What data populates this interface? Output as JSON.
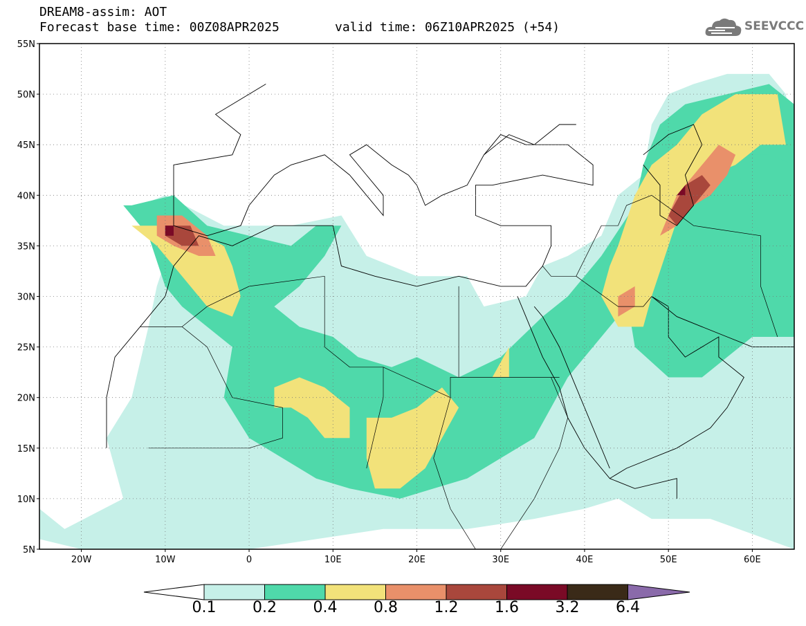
{
  "header": {
    "title": "DREAM8-assim: AOT",
    "base_time": "Forecast base time: 00Z08APR2025",
    "valid_time": "valid time: 06Z10APR2025 (+54)"
  },
  "logo": {
    "text": "SEEVCCC",
    "icon": "cloud-logo-icon"
  },
  "map": {
    "product": "Dust aerosol optical thickness forecast",
    "lon_range": [
      -25,
      65
    ],
    "lat_range": [
      5,
      55
    ],
    "grid": "dotted",
    "lat_labels": [
      "5N",
      "10N",
      "15N",
      "20N",
      "25N",
      "30N",
      "35N",
      "40N",
      "45N",
      "50N",
      "55N"
    ],
    "lon_labels": [
      "20W",
      "10W",
      "0",
      "10E",
      "20E",
      "30E",
      "40E",
      "50E",
      "60E"
    ],
    "colors": {
      "c0.1": "#c6f0e8",
      "c0.2": "#4fd9aa",
      "c0.4": "#f2e27a",
      "c0.8": "#e9906a",
      "c1.2": "#a9473c",
      "c1.6": "#7a0a26",
      "c3.2": "#3a2a18",
      "c6.4": "#8a6aaa"
    }
  },
  "colorbar": {
    "levels": [
      "0.1",
      "0.2",
      "0.4",
      "0.8",
      "1.2",
      "1.6",
      "3.2",
      "6.4"
    ],
    "colors": [
      "#c6f0e8",
      "#4fd9aa",
      "#f2e27a",
      "#e9906a",
      "#a9473c",
      "#7a0a26",
      "#3a2a18",
      "#8a6aaa"
    ],
    "under_color": "#ffffff",
    "over_color": "#8a6aaa"
  }
}
